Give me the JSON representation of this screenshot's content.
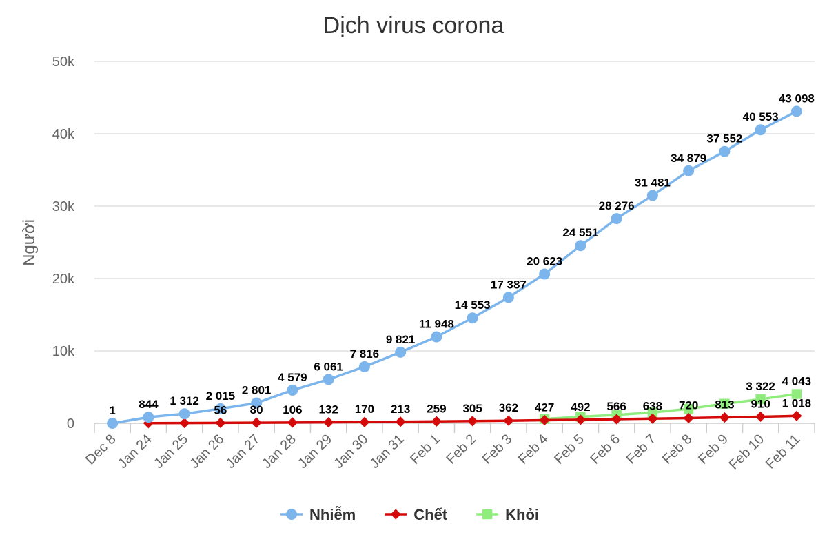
{
  "chart_data": {
    "type": "line",
    "title": "Dịch virus corona",
    "ylabel": "Người",
    "xlabel": "",
    "ylim": [
      0,
      50000
    ],
    "yticks": [
      {
        "value": 0,
        "label": "0"
      },
      {
        "value": 10000,
        "label": "10k"
      },
      {
        "value": 20000,
        "label": "20k"
      },
      {
        "value": 30000,
        "label": "30k"
      },
      {
        "value": 40000,
        "label": "40k"
      },
      {
        "value": 50000,
        "label": "50k"
      }
    ],
    "categories": [
      "Dec 8",
      "Jan 24",
      "Jan 25",
      "Jan 26",
      "Jan 27",
      "Jan 28",
      "Jan 29",
      "Jan 30",
      "Jan 31",
      "Feb 1",
      "Feb 2",
      "Feb 3",
      "Feb 4",
      "Feb 5",
      "Feb 6",
      "Feb 7",
      "Feb 8",
      "Feb 9",
      "Feb 10",
      "Feb 11"
    ],
    "grid": true,
    "legend_position": "bottom",
    "series": [
      {
        "name": "Nhiễm",
        "color": "#7cb5ec",
        "marker": "circle",
        "values": [
          1,
          844,
          1312,
          2015,
          2801,
          4579,
          6061,
          7816,
          9821,
          11948,
          14553,
          17387,
          20623,
          24551,
          28276,
          31481,
          34879,
          37552,
          40553,
          43098
        ],
        "labels": [
          "1",
          "844",
          "1 312",
          "2 015",
          "2 801",
          "4 579",
          "6 061",
          "7 816",
          "9 821",
          "11 948",
          "14 553",
          "17 387",
          "20 623",
          "24 551",
          "28 276",
          "31 481",
          "34 879",
          "37 552",
          "40 553",
          "43 098"
        ]
      },
      {
        "name": "Chết",
        "color": "#d40a0a",
        "marker": "diamond",
        "values": [
          null,
          26,
          41,
          56,
          80,
          106,
          132,
          170,
          213,
          259,
          305,
          362,
          427,
          492,
          566,
          638,
          720,
          813,
          910,
          1018
        ],
        "labels": [
          "",
          "",
          "",
          "56",
          "80",
          "106",
          "132",
          "170",
          "213",
          "259",
          "305",
          "362",
          "427",
          "492",
          "566",
          "638",
          "720",
          "813",
          "910",
          "1 018"
        ]
      },
      {
        "name": "Khỏi",
        "color": "#90ed7d",
        "marker": "square",
        "values": [
          null,
          null,
          null,
          null,
          null,
          null,
          null,
          null,
          null,
          null,
          null,
          null,
          600,
          900,
          1150,
          1500,
          2000,
          2700,
          3322,
          4043
        ],
        "labels": [
          "",
          "",
          "",
          "",
          "",
          "",
          "",
          "",
          "",
          "",
          "",
          "",
          "",
          "",
          "",
          "",
          "",
          "",
          "3 322",
          "4 043"
        ]
      }
    ]
  }
}
